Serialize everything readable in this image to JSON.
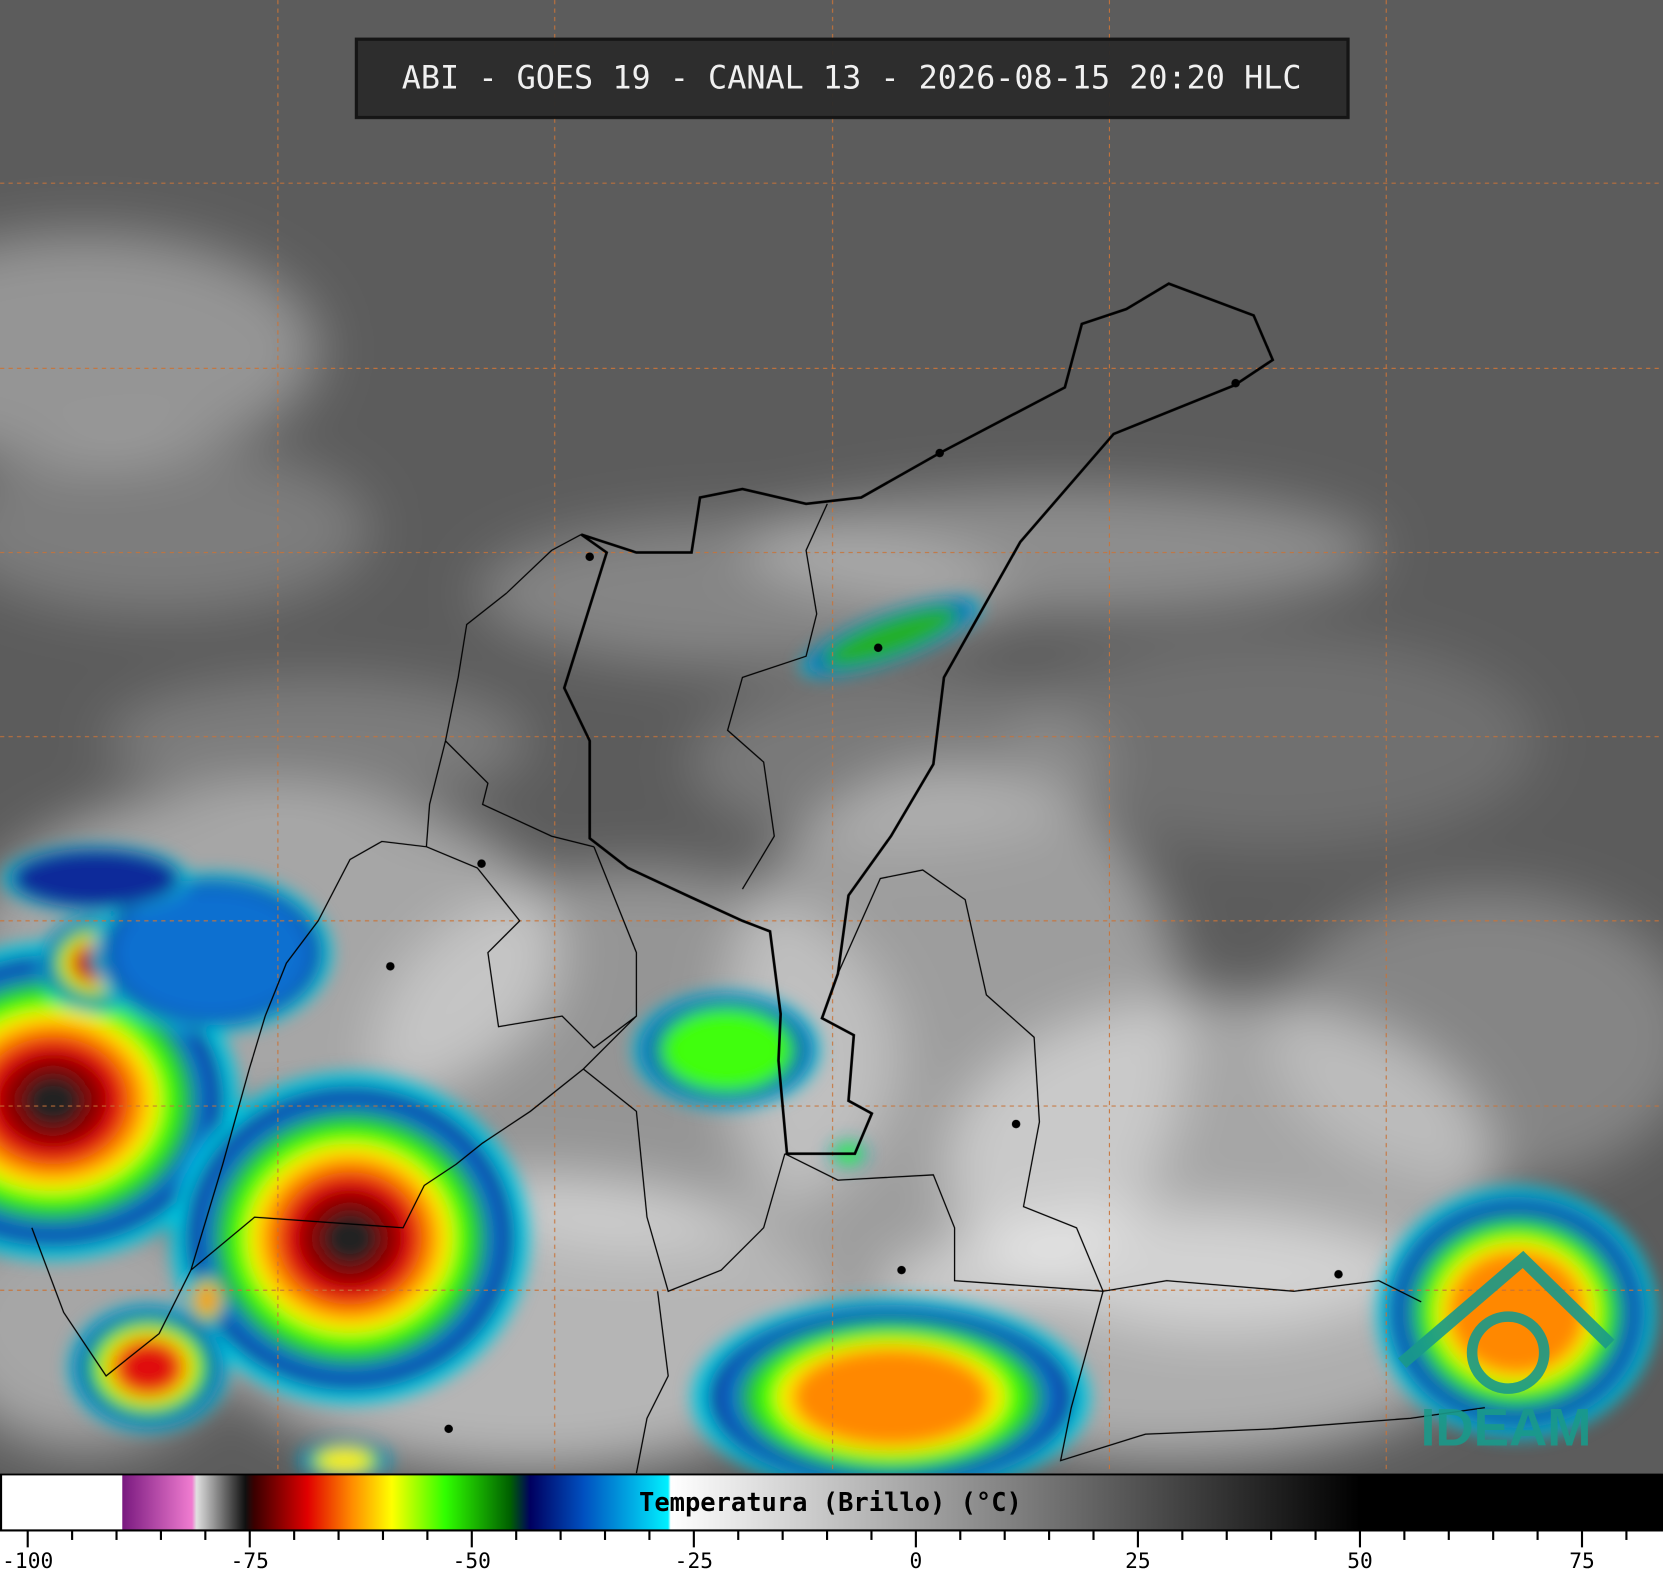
{
  "title": "ABI - GOES 19 - CANAL 13 - 2026-08-15 20:20 HLC",
  "logo": "IDEAM",
  "colorbar": {
    "label": "Temperatura (Brillo) (°C)",
    "xlim": [
      -103,
      84
    ],
    "ticks": [
      -100,
      -75,
      -50,
      -25,
      0,
      25,
      50,
      75
    ],
    "minor_ticks": [
      -95,
      -90,
      -85,
      -80,
      -70,
      -65,
      -60,
      -55,
      -45,
      -40,
      -35,
      -30,
      -20,
      -15,
      -10,
      -5,
      5,
      10,
      15,
      20,
      30,
      35,
      40,
      45,
      55,
      60,
      65,
      70,
      80
    ],
    "stops": [
      {
        "value": -103,
        "color": "#ffffff"
      },
      {
        "value": -89.4,
        "color": "#ffffff"
      },
      {
        "value": -89.3,
        "color": "#7a1a80"
      },
      {
        "value": -81.5,
        "color": "#f07cd0"
      },
      {
        "value": -81,
        "color": "#e0e0e0"
      },
      {
        "value": -75.5,
        "color": "#101010"
      },
      {
        "value": -74.5,
        "color": "#3a0000"
      },
      {
        "value": -68.5,
        "color": "#e00000"
      },
      {
        "value": -63.5,
        "color": "#ff8c00"
      },
      {
        "value": -59,
        "color": "#ffff00"
      },
      {
        "value": -53,
        "color": "#30ff00"
      },
      {
        "value": -45.7,
        "color": "#006000"
      },
      {
        "value": -43.4,
        "color": "#000060"
      },
      {
        "value": -37.4,
        "color": "#0050c0"
      },
      {
        "value": -27.9,
        "color": "#00f0ff"
      },
      {
        "value": -27.6,
        "color": "#ffffff"
      },
      {
        "value": 50,
        "color": "#000000"
      },
      {
        "value": 84,
        "color": "#000000"
      }
    ]
  }
}
